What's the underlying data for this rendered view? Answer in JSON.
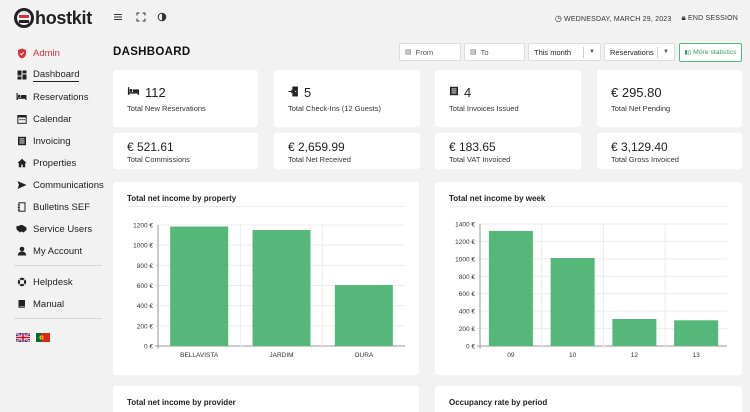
{
  "app": {
    "logo_text": "hostkit",
    "date": "WEDNESDAY, MARCH 29, 2023",
    "end_session": "END SESSION"
  },
  "sidebar": {
    "items": [
      {
        "label": "Admin",
        "icon": "shield-icon"
      },
      {
        "label": "Dashboard",
        "icon": "dashboard-icon"
      },
      {
        "label": "Reservations",
        "icon": "bed-icon"
      },
      {
        "label": "Calendar",
        "icon": "calendar-icon"
      },
      {
        "label": "Invoicing",
        "icon": "invoice-icon"
      },
      {
        "label": "Properties",
        "icon": "home-icon"
      },
      {
        "label": "Communications",
        "icon": "send-icon"
      },
      {
        "label": "Bulletins SEF",
        "icon": "document-icon"
      },
      {
        "label": "Service Users",
        "icon": "handshake-icon"
      },
      {
        "label": "My Account",
        "icon": "user-icon"
      }
    ],
    "secondary": [
      {
        "label": "Helpdesk",
        "icon": "lifebuoy-icon"
      },
      {
        "label": "Manual",
        "icon": "book-icon"
      }
    ],
    "languages": [
      "en",
      "pt"
    ]
  },
  "header": {
    "title": "DASHBOARD",
    "from_placeholder": "From",
    "to_placeholder": "To",
    "period_value": "This month",
    "type_value": "Reservations",
    "more_statistics": "More statistics"
  },
  "stats_row1": [
    {
      "value": "112",
      "label": "Total New Reservations",
      "icon": "bed-icon"
    },
    {
      "value": "5",
      "label": "Total Check-Ins (12 Guests)",
      "icon": "door-icon"
    },
    {
      "value": "4",
      "label": "Total Invoices Issued",
      "icon": "invoice-icon"
    },
    {
      "value": "€ 295.80",
      "label": "Total Net Pending",
      "icon": ""
    }
  ],
  "stats_row2": [
    {
      "value": "€ 521.61",
      "label": "Total Commissions"
    },
    {
      "value": "€ 2,659.99",
      "label": "Total Net Received"
    },
    {
      "value": "€ 183.65",
      "label": "Total VAT Invoiced"
    },
    {
      "value": "€ 3,129.40",
      "label": "Total Gross Invoiced"
    }
  ],
  "colors": {
    "accent": "#d8323c",
    "bar": "#55b77a",
    "button": "#52b87b"
  },
  "chart_data": [
    {
      "type": "bar",
      "title": "Total net income by property",
      "categories": [
        "BELLAVISTA",
        "JARDIM",
        "OURA"
      ],
      "values": [
        1185,
        1150,
        605
      ],
      "yticks": [
        "0 €",
        "200 €",
        "400 €",
        "600 €",
        "800 €",
        "1000 €",
        "1200 €"
      ],
      "ylim": [
        0,
        1200
      ],
      "grid": true
    },
    {
      "type": "bar",
      "title": "Total net income by week",
      "categories": [
        "09",
        "10",
        "12",
        "13"
      ],
      "values": [
        1320,
        1010,
        310,
        295
      ],
      "yticks": [
        "0 €",
        "200 €",
        "400 €",
        "600 €",
        "800 €",
        "1000 €",
        "1200 €",
        "1400 €"
      ],
      "ylim": [
        0,
        1400
      ],
      "grid": true
    }
  ],
  "bottom_cards": [
    {
      "title": "Total net income by provider"
    },
    {
      "title": "Occupancy rate by period"
    }
  ]
}
